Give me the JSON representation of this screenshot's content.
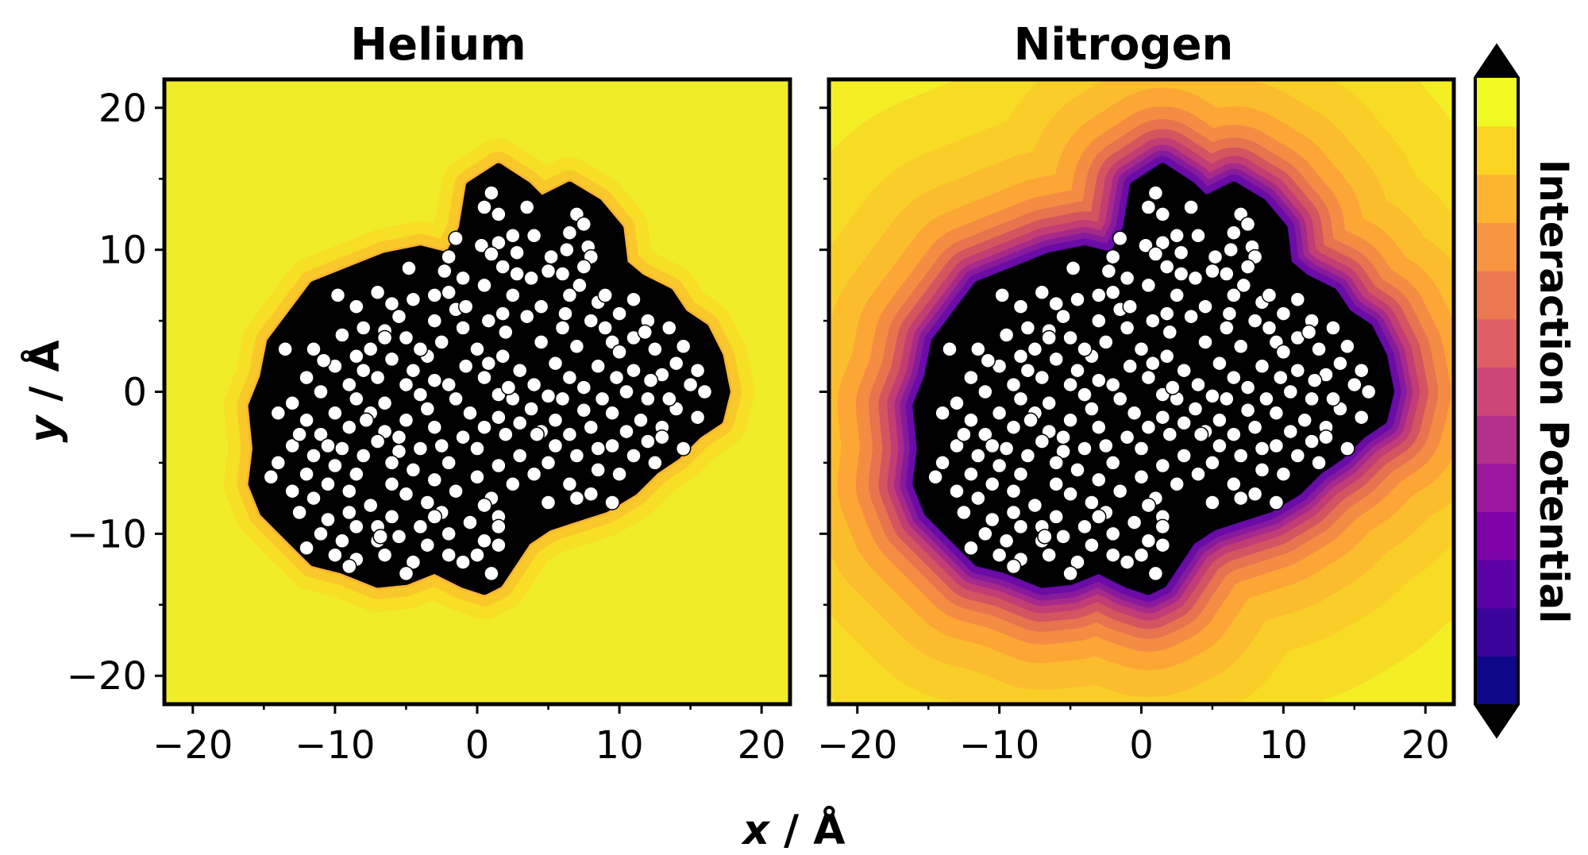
{
  "chart_data": {
    "type": "heatmap",
    "panels": [
      {
        "title": "Helium",
        "field": "helium"
      },
      {
        "title": "Nitrogen",
        "field": "nitrogen"
      }
    ],
    "xlabel_var": "x",
    "xlabel_unit": " / Å",
    "ylabel_var": "y",
    "ylabel_unit": " / Å",
    "xlim": [
      -22,
      22
    ],
    "ylim": [
      -22,
      22
    ],
    "xticks": [
      -20,
      -10,
      0,
      10,
      20
    ],
    "yticks": [
      -20,
      -10,
      0,
      10,
      20
    ],
    "xtick_labels": [
      "−20",
      "−10",
      "0",
      "10",
      "20"
    ],
    "ytick_labels": [
      "20",
      "10",
      "0",
      "−10",
      "−20"
    ],
    "colorbar": {
      "label": "Interaction Potential",
      "colormap": "plasma",
      "extend": "both",
      "levels": [
        "#0d0887",
        "#3a049a",
        "#5c01a6",
        "#7e03a8",
        "#9c179e",
        "#b52f8c",
        "#cc4778",
        "#de5f65",
        "#ed7953",
        "#f89540",
        "#fdb42f",
        "#fbd524",
        "#f0f921"
      ],
      "over_color": "#000000",
      "under_color": "#000000"
    },
    "colors": {
      "molecule": "#000000",
      "atom": "#ffffff",
      "background_field": "#f0ec28"
    },
    "molecule_outline": [
      [
        1.5,
        15.8
      ],
      [
        3.5,
        14.5
      ],
      [
        4.5,
        13.5
      ],
      [
        6.5,
        14.5
      ],
      [
        8.5,
        13.3
      ],
      [
        10.0,
        11.5
      ],
      [
        10.3,
        9.0
      ],
      [
        11.5,
        8.0
      ],
      [
        13.5,
        7.0
      ],
      [
        14.5,
        5.5
      ],
      [
        16.0,
        4.5
      ],
      [
        17.0,
        2.5
      ],
      [
        17.5,
        0.0
      ],
      [
        17.0,
        -2.0
      ],
      [
        15.5,
        -3.0
      ],
      [
        14.0,
        -4.5
      ],
      [
        12.5,
        -5.5
      ],
      [
        11.0,
        -7.0
      ],
      [
        9.0,
        -8.2
      ],
      [
        6.5,
        -9.0
      ],
      [
        5.0,
        -9.5
      ],
      [
        3.5,
        -10.5
      ],
      [
        2.5,
        -12.0
      ],
      [
        1.5,
        -13.5
      ],
      [
        0.5,
        -14.0
      ],
      [
        -1.0,
        -13.5
      ],
      [
        -3.0,
        -12.5
      ],
      [
        -5.0,
        -13.3
      ],
      [
        -7.0,
        -13.5
      ],
      [
        -9.5,
        -12.5
      ],
      [
        -11.5,
        -12.0
      ],
      [
        -13.5,
        -10.0
      ],
      [
        -15.0,
        -8.5
      ],
      [
        -15.8,
        -6.5
      ],
      [
        -15.5,
        -4.0
      ],
      [
        -15.8,
        -1.0
      ],
      [
        -15.0,
        1.0
      ],
      [
        -14.5,
        3.5
      ],
      [
        -13.0,
        5.5
      ],
      [
        -11.5,
        7.5
      ],
      [
        -9.0,
        8.5
      ],
      [
        -6.5,
        9.5
      ],
      [
        -4.0,
        10.0
      ],
      [
        -2.0,
        9.5
      ],
      [
        -1.0,
        11.5
      ],
      [
        -0.5,
        14.5
      ]
    ],
    "atoms": [
      [
        1.0,
        14.0
      ],
      [
        0.5,
        13.0
      ],
      [
        1.5,
        12.5
      ],
      [
        7.0,
        12.5
      ],
      [
        7.5,
        11.8
      ],
      [
        6.5,
        11.2
      ],
      [
        2.5,
        11.0
      ],
      [
        4.0,
        11.0
      ],
      [
        1.5,
        10.5
      ],
      [
        0.3,
        10.3
      ],
      [
        6.3,
        10.0
      ],
      [
        7.8,
        10.2
      ],
      [
        8.0,
        9.5
      ],
      [
        1.0,
        9.7
      ],
      [
        -2.0,
        9.5
      ],
      [
        7.5,
        8.8
      ],
      [
        5.0,
        8.5
      ],
      [
        6.0,
        8.3
      ],
      [
        -4.8,
        8.7
      ],
      [
        -2.3,
        8.5
      ],
      [
        1.8,
        8.8
      ],
      [
        2.8,
        8.3
      ],
      [
        7.2,
        7.5
      ],
      [
        -7.0,
        7.0
      ],
      [
        -2.0,
        7.0
      ],
      [
        0.5,
        7.5
      ],
      [
        2.5,
        6.8
      ],
      [
        -4.5,
        6.5
      ],
      [
        -3.0,
        6.8
      ],
      [
        6.5,
        6.8
      ],
      [
        8.5,
        6.3
      ],
      [
        11.0,
        6.5
      ],
      [
        -8.5,
        6.0
      ],
      [
        -6.0,
        6.2
      ],
      [
        -1.5,
        5.8
      ],
      [
        1.8,
        5.5
      ],
      [
        4.5,
        6.0
      ],
      [
        10.0,
        5.5
      ],
      [
        -5.5,
        5.3
      ],
      [
        -3.0,
        5.0
      ],
      [
        0.8,
        5.0
      ],
      [
        3.5,
        5.3
      ],
      [
        8.0,
        5.0
      ],
      [
        12.0,
        5.0
      ],
      [
        -8.0,
        4.5
      ],
      [
        -6.5,
        4.3
      ],
      [
        -1.0,
        4.5
      ],
      [
        2.0,
        4.2
      ],
      [
        6.0,
        4.5
      ],
      [
        9.0,
        4.5
      ],
      [
        13.5,
        4.5
      ],
      [
        -9.5,
        4.0
      ],
      [
        -5.0,
        3.8
      ],
      [
        -2.5,
        3.5
      ],
      [
        4.5,
        3.5
      ],
      [
        11.0,
        3.8
      ],
      [
        -13.5,
        3.0
      ],
      [
        -11.5,
        3.0
      ],
      [
        -7.5,
        3.0
      ],
      [
        0.0,
        3.0
      ],
      [
        7.0,
        3.2
      ],
      [
        9.5,
        3.5
      ],
      [
        12.5,
        3.0
      ],
      [
        14.5,
        3.2
      ],
      [
        -8.5,
        2.5
      ],
      [
        -6.0,
        2.3
      ],
      [
        -3.5,
        2.5
      ],
      [
        1.8,
        2.5
      ],
      [
        5.5,
        2.0
      ],
      [
        14.0,
        2.0
      ],
      [
        -10.0,
        1.8
      ],
      [
        -4.5,
        1.5
      ],
      [
        -0.8,
        1.8
      ],
      [
        3.0,
        1.5
      ],
      [
        8.5,
        1.8
      ],
      [
        11.0,
        1.5
      ],
      [
        15.5,
        1.5
      ],
      [
        -12.0,
        1.0
      ],
      [
        -7.0,
        1.0
      ],
      [
        0.5,
        1.0
      ],
      [
        6.5,
        1.0
      ],
      [
        9.8,
        1.0
      ],
      [
        13.0,
        1.2
      ],
      [
        -9.0,
        0.5
      ],
      [
        -5.0,
        0.5
      ],
      [
        -2.0,
        0.5
      ],
      [
        4.0,
        0.5
      ],
      [
        7.5,
        0.3
      ],
      [
        15.0,
        0.5
      ],
      [
        -11.0,
        0.0
      ],
      [
        -4.0,
        -0.2
      ],
      [
        1.5,
        -0.2
      ],
      [
        5.0,
        -0.3
      ],
      [
        10.5,
        0.0
      ],
      [
        16.0,
        0.0
      ],
      [
        -13.0,
        -0.8
      ],
      [
        -8.5,
        -0.5
      ],
      [
        -6.5,
        -0.8
      ],
      [
        2.5,
        -0.5
      ],
      [
        6.0,
        -0.5
      ],
      [
        12.0,
        -0.5
      ],
      [
        -10.0,
        -1.5
      ],
      [
        -7.5,
        -1.5
      ],
      [
        -0.5,
        -1.5
      ],
      [
        1.5,
        -1.8
      ],
      [
        7.5,
        -1.3
      ],
      [
        9.5,
        -1.5
      ],
      [
        14.0,
        -1.2
      ],
      [
        -14.0,
        -1.5
      ],
      [
        -12.0,
        -2.0
      ],
      [
        -5.0,
        -2.0
      ],
      [
        3.0,
        -2.2
      ],
      [
        5.5,
        -2.0
      ],
      [
        11.5,
        -2.0
      ],
      [
        15.5,
        -1.8
      ],
      [
        -9.0,
        -2.5
      ],
      [
        -6.5,
        -2.8
      ],
      [
        -3.0,
        -2.5
      ],
      [
        0.5,
        -2.5
      ],
      [
        4.5,
        -2.8
      ],
      [
        8.0,
        -2.5
      ],
      [
        10.5,
        -2.8
      ],
      [
        13.0,
        -2.5
      ],
      [
        -11.0,
        -3.0
      ],
      [
        -7.0,
        -3.5
      ],
      [
        -1.0,
        -3.2
      ],
      [
        2.0,
        -3.0
      ],
      [
        6.5,
        -3.0
      ],
      [
        12.0,
        -3.5
      ],
      [
        -13.0,
        -3.8
      ],
      [
        -9.5,
        -4.0
      ],
      [
        -4.0,
        -4.0
      ],
      [
        0.0,
        -4.0
      ],
      [
        5.5,
        -3.8
      ],
      [
        9.5,
        -3.8
      ],
      [
        14.5,
        -4.0
      ],
      [
        -11.5,
        -4.5
      ],
      [
        -8.0,
        -4.5
      ],
      [
        -5.5,
        -4.2
      ],
      [
        3.0,
        -4.5
      ],
      [
        7.0,
        -4.5
      ],
      [
        11.0,
        -4.5
      ],
      [
        -14.0,
        -5.0
      ],
      [
        -10.0,
        -5.2
      ],
      [
        -2.0,
        -5.0
      ],
      [
        1.5,
        -5.2
      ],
      [
        5.0,
        -5.0
      ],
      [
        8.5,
        -5.5
      ],
      [
        12.5,
        -5.0
      ],
      [
        -12.0,
        -5.8
      ],
      [
        -8.5,
        -5.8
      ],
      [
        -4.5,
        -5.5
      ],
      [
        4.0,
        -5.8
      ],
      [
        10.0,
        -5.8
      ],
      [
        -14.5,
        -6.0
      ],
      [
        -10.5,
        -6.5
      ],
      [
        -6.0,
        -6.5
      ],
      [
        -3.0,
        -6.2
      ],
      [
        0.0,
        -6.0
      ],
      [
        2.5,
        -6.5
      ],
      [
        6.5,
        -6.5
      ],
      [
        -13.0,
        -7.0
      ],
      [
        -9.0,
        -7.0
      ],
      [
        -5.0,
        -7.2
      ],
      [
        -1.5,
        -7.0
      ],
      [
        1.0,
        -7.5
      ],
      [
        5.0,
        -7.8
      ],
      [
        7.0,
        -7.5
      ],
      [
        9.5,
        -7.8
      ],
      [
        -11.5,
        -7.5
      ],
      [
        -7.5,
        -8.0
      ],
      [
        -3.5,
        -7.8
      ],
      [
        0.5,
        -8.0
      ],
      [
        8.0,
        -7.2
      ],
      [
        -12.5,
        -8.5
      ],
      [
        -9.0,
        -8.5
      ],
      [
        -6.0,
        -8.8
      ],
      [
        -2.5,
        -8.5
      ],
      [
        1.5,
        -8.8
      ],
      [
        -10.5,
        -9.0
      ],
      [
        -7.0,
        -9.5
      ],
      [
        -4.0,
        -9.5
      ],
      [
        -0.5,
        -9.2
      ],
      [
        1.5,
        -9.5
      ],
      [
        -8.5,
        -9.5
      ],
      [
        -11.0,
        -10.0
      ],
      [
        -5.5,
        -10.2
      ],
      [
        -2.0,
        -10.0
      ],
      [
        0.5,
        -10.5
      ],
      [
        -9.5,
        -10.5
      ],
      [
        -7.0,
        -10.5
      ],
      [
        -3.5,
        -10.8
      ],
      [
        1.5,
        -10.8
      ],
      [
        -12.0,
        -11.0
      ],
      [
        -10.0,
        -11.5
      ],
      [
        -6.5,
        -11.5
      ],
      [
        -2.0,
        -11.5
      ],
      [
        0.0,
        -11.5
      ],
      [
        -8.5,
        -11.8
      ],
      [
        -4.5,
        -12.0
      ],
      [
        -1.0,
        -12.0
      ],
      [
        -9.0,
        -12.3
      ],
      [
        -5.0,
        -12.8
      ],
      [
        1.0,
        -12.8
      ],
      [
        3.5,
        13.0
      ],
      [
        3.8,
        8.0
      ],
      [
        -1.0,
        8.0
      ],
      [
        -6.5,
        3.8
      ],
      [
        -3.0,
        0.8
      ],
      [
        2.2,
        0.3
      ],
      [
        -1.5,
        -0.5
      ],
      [
        0.8,
        2.0
      ],
      [
        8.8,
        -0.5
      ],
      [
        10.0,
        2.8
      ],
      [
        12.2,
        0.8
      ],
      [
        -7.8,
        -2.0
      ],
      [
        -5.5,
        -3.2
      ],
      [
        3.8,
        -1.2
      ],
      [
        6.2,
        5.5
      ],
      [
        -10.8,
        2.2
      ],
      [
        13.5,
        -0.5
      ],
      [
        -2.5,
        -3.8
      ],
      [
        4.2,
        -3.0
      ],
      [
        -0.8,
        6.0
      ],
      [
        5.2,
        9.5
      ],
      [
        -6.0,
        -5.0
      ],
      [
        -8.0,
        1.5
      ],
      [
        -12.5,
        -3.0
      ],
      [
        -4.0,
        3.0
      ],
      [
        2.8,
        9.8
      ],
      [
        -1.5,
        10.8
      ],
      [
        11.8,
        4.2
      ],
      [
        9.0,
        6.8
      ],
      [
        -9.8,
        6.8
      ],
      [
        -3.5,
        -1.2
      ],
      [
        -10.5,
        -3.8
      ],
      [
        8.5,
        -4.0
      ],
      [
        13.0,
        -3.2
      ],
      [
        -6.8,
        -10.2
      ],
      [
        -3.0,
        -8.8
      ]
    ],
    "fields": {
      "helium": [
        {
          "d": 3.0,
          "color": "#f0ec28"
        },
        {
          "d": 2.0,
          "color": "#f6df24"
        },
        {
          "d": 1.1,
          "color": "#f9c82b"
        },
        {
          "d": 0.45,
          "color": "#fbb431"
        }
      ],
      "nitrogen": [
        {
          "d": 26,
          "color": "#f3ef24"
        },
        {
          "d": 14,
          "color": "#f7dc25"
        },
        {
          "d": 10,
          "color": "#f9ce28"
        },
        {
          "d": 7.5,
          "color": "#fbbd2e"
        },
        {
          "d": 5.6,
          "color": "#fca635"
        },
        {
          "d": 4.3,
          "color": "#f48c43"
        },
        {
          "d": 3.4,
          "color": "#e7734f"
        },
        {
          "d": 2.7,
          "color": "#d4545f"
        },
        {
          "d": 2.1,
          "color": "#c23d73"
        },
        {
          "d": 1.6,
          "color": "#a72a8b"
        },
        {
          "d": 1.2,
          "color": "#871b9b"
        },
        {
          "d": 0.8,
          "color": "#6a0ca5"
        },
        {
          "d": 0.35,
          "color": "#5302a3"
        },
        {
          "d": 0.12,
          "color": "#f7d04a"
        }
      ]
    }
  }
}
